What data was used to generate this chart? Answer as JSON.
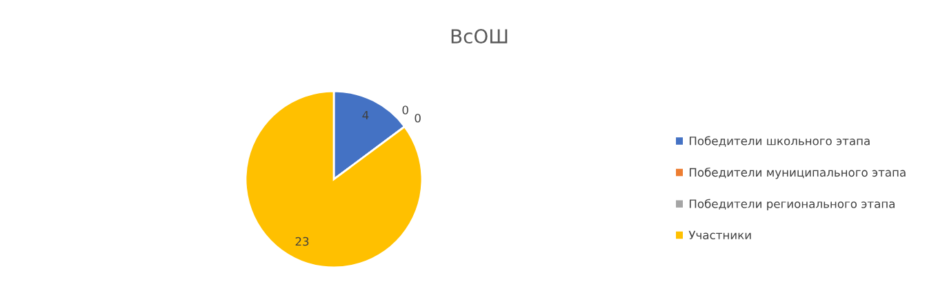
{
  "chart_data": {
    "type": "pie",
    "title": "ВсОШ",
    "categories": [
      "Победители школьного этапа",
      "Победители муниципального этапа",
      "Победители регионального этапа",
      "Участники"
    ],
    "values": [
      4,
      0,
      0,
      23
    ],
    "colors": [
      "#4472c4",
      "#ed7d31",
      "#a5a5a5",
      "#ffc000"
    ],
    "value_labels": [
      "4",
      "0",
      "0",
      "23"
    ],
    "legend": "right"
  }
}
